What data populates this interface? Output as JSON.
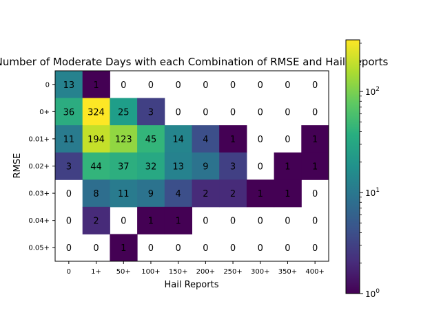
{
  "chart_data": {
    "type": "heatmap",
    "title": "Number of Moderate Days with each Combination of RMSE and Hail Reports",
    "xlabel": "Hail Reports",
    "ylabel": "RMSE",
    "x_categories": [
      "0",
      "1+",
      "50+",
      "100+",
      "150+",
      "200+",
      "250+",
      "300+",
      "350+",
      "400+"
    ],
    "y_categories": [
      "0",
      "0+",
      "0.01+",
      "0.02+",
      "0.03+",
      "0.04+",
      "0.05+"
    ],
    "values": [
      [
        13,
        1,
        0,
        0,
        0,
        0,
        0,
        0,
        0,
        0
      ],
      [
        36,
        324,
        25,
        3,
        0,
        0,
        0,
        0,
        0,
        0
      ],
      [
        11,
        194,
        123,
        45,
        14,
        4,
        1,
        0,
        0,
        1
      ],
      [
        3,
        44,
        37,
        32,
        13,
        9,
        3,
        0,
        1,
        1
      ],
      [
        0,
        8,
        11,
        9,
        4,
        2,
        2,
        1,
        1,
        0
      ],
      [
        0,
        2,
        0,
        1,
        1,
        0,
        0,
        0,
        0,
        0
      ],
      [
        0,
        0,
        1,
        0,
        0,
        0,
        0,
        0,
        0,
        0
      ]
    ],
    "zero_cells": "blank (white)",
    "colorbar": {
      "scale": "log",
      "colormap": "viridis",
      "vmin": 1,
      "vmax": 324,
      "tick_labels": [
        "10^0",
        "10^1",
        "10^2"
      ],
      "tick_values": [
        1,
        10,
        100
      ]
    }
  }
}
